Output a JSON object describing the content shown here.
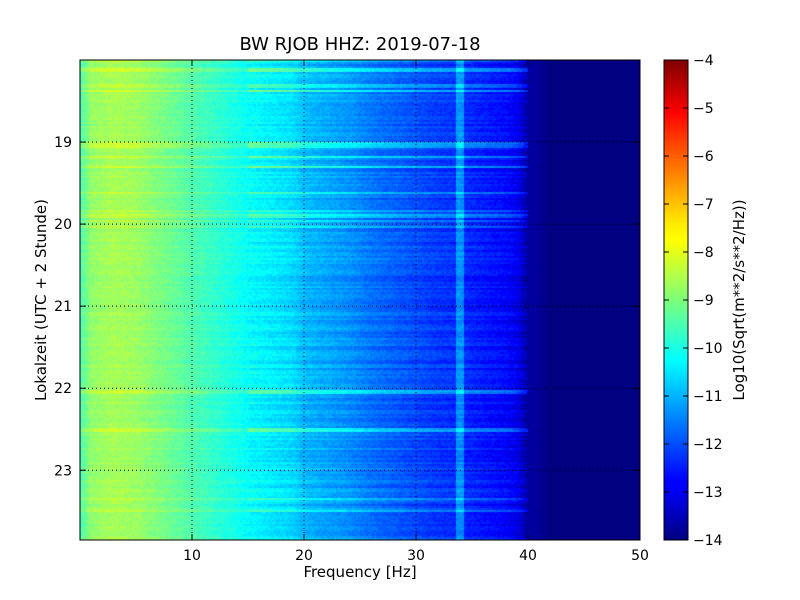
{
  "chart_data": {
    "type": "heatmap",
    "title": "BW RJOB HHZ: 2019-07-18",
    "xlabel": "Frequency [Hz]",
    "ylabel": "Lokalzeit (UTC + 2 Stunde)",
    "colorbar_label": "Log10(Sqrt(m**2/s**2/Hz))",
    "xlim": [
      0,
      50
    ],
    "ylim_hours": [
      18.0,
      23.85
    ],
    "y_inverted": true,
    "xticks": [
      10,
      20,
      30,
      40,
      50
    ],
    "yticks": [
      19,
      20,
      21,
      22,
      23
    ],
    "clim": [
      -14,
      -4
    ],
    "colorbar_ticks": [
      -4,
      -5,
      -6,
      -7,
      -8,
      -9,
      -10,
      -11,
      -12,
      -13,
      -14
    ],
    "colormap": "jet",
    "grid": true,
    "spectrum_profile": {
      "frequency_hz": [
        0,
        1,
        3,
        5,
        7,
        9,
        11,
        13,
        15,
        17,
        19,
        20,
        22,
        24,
        26,
        28,
        30,
        32,
        34,
        36,
        38,
        39,
        40,
        42,
        45,
        50
      ],
      "log_psd": [
        -9.5,
        -8.8,
        -8.6,
        -8.7,
        -9.0,
        -9.3,
        -9.6,
        -9.9,
        -10.2,
        -10.4,
        -10.6,
        -10.9,
        -11.1,
        -11.3,
        -11.6,
        -11.8,
        -12.0,
        -12.2,
        -12.3,
        -12.5,
        -12.7,
        -12.9,
        -13.6,
        -14.0,
        -14.0,
        -14.0
      ]
    },
    "spectral_line_hz": 34.0
  }
}
